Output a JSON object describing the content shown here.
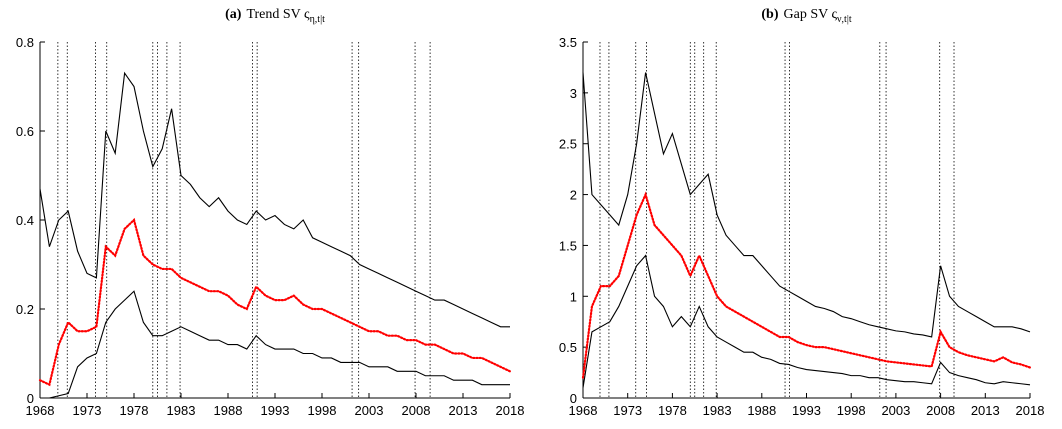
{
  "chart_data": [
    {
      "type": "line",
      "label": "(a)",
      "title": "Trend SV ς",
      "subscript": "η,t|t",
      "x": [
        1968,
        1969,
        1970,
        1971,
        1972,
        1973,
        1974,
        1975,
        1976,
        1977,
        1978,
        1979,
        1980,
        1981,
        1982,
        1983,
        1984,
        1985,
        1986,
        1987,
        1988,
        1989,
        1990,
        1991,
        1992,
        1993,
        1994,
        1995,
        1996,
        1997,
        1998,
        1999,
        2000,
        2001,
        2002,
        2003,
        2004,
        2005,
        2006,
        2007,
        2008,
        2009,
        2010,
        2011,
        2012,
        2013,
        2014,
        2015,
        2016,
        2017,
        2018
      ],
      "series": [
        {
          "color": "#000000",
          "style": "solid",
          "values": [
            0.47,
            0.34,
            0.4,
            0.42,
            0.33,
            0.28,
            0.27,
            0.6,
            0.55,
            0.73,
            0.7,
            0.6,
            0.52,
            0.56,
            0.65,
            0.5,
            0.48,
            0.45,
            0.43,
            0.45,
            0.42,
            0.4,
            0.39,
            0.42,
            0.4,
            0.41,
            0.39,
            0.38,
            0.4,
            0.36,
            0.35,
            0.34,
            0.33,
            0.32,
            0.3,
            0.29,
            0.28,
            0.27,
            0.26,
            0.25,
            0.24,
            0.23,
            0.22,
            0.22,
            0.21,
            0.2,
            0.19,
            0.18,
            0.17,
            0.16,
            0.16
          ]
        },
        {
          "color": "#ff0000",
          "style": "dotted",
          "values": [
            0.04,
            0.03,
            0.12,
            0.17,
            0.15,
            0.15,
            0.16,
            0.34,
            0.32,
            0.38,
            0.4,
            0.32,
            0.3,
            0.29,
            0.29,
            0.27,
            0.26,
            0.25,
            0.24,
            0.24,
            0.23,
            0.21,
            0.2,
            0.25,
            0.23,
            0.22,
            0.22,
            0.23,
            0.21,
            0.2,
            0.2,
            0.19,
            0.18,
            0.17,
            0.16,
            0.15,
            0.15,
            0.14,
            0.14,
            0.13,
            0.13,
            0.12,
            0.12,
            0.11,
            0.1,
            0.1,
            0.09,
            0.09,
            0.08,
            0.07,
            0.06
          ]
        },
        {
          "color": "#000000",
          "style": "solid",
          "values": [
            0,
            0,
            0.005,
            0.01,
            0.07,
            0.09,
            0.1,
            0.17,
            0.2,
            0.22,
            0.24,
            0.17,
            0.14,
            0.14,
            0.15,
            0.16,
            0.15,
            0.14,
            0.13,
            0.13,
            0.12,
            0.12,
            0.11,
            0.14,
            0.12,
            0.11,
            0.11,
            0.11,
            0.1,
            0.1,
            0.09,
            0.09,
            0.08,
            0.08,
            0.08,
            0.07,
            0.07,
            0.07,
            0.06,
            0.06,
            0.06,
            0.05,
            0.05,
            0.05,
            0.04,
            0.04,
            0.04,
            0.03,
            0.03,
            0.03,
            0.03
          ]
        }
      ],
      "vlines": [
        1969.9,
        1970.9,
        1973.9,
        1975.1,
        1980.0,
        1980.5,
        1981.5,
        1982.9,
        1990.6,
        1991.1,
        2001.2,
        2001.9,
        2007.9,
        2009.5
      ],
      "xlim": [
        1968,
        2018
      ],
      "xticks": [
        1968,
        1973,
        1978,
        1983,
        1988,
        1993,
        1998,
        2003,
        2008,
        2013,
        2018
      ],
      "ylim": [
        0,
        0.8
      ],
      "yticks": [
        0,
        0.2,
        0.4,
        0.6,
        0.8
      ]
    },
    {
      "type": "line",
      "label": "(b)",
      "title": "Gap SV ς",
      "subscript": "ν,t|t",
      "x": [
        1968,
        1969,
        1970,
        1971,
        1972,
        1973,
        1974,
        1975,
        1976,
        1977,
        1978,
        1979,
        1980,
        1981,
        1982,
        1983,
        1984,
        1985,
        1986,
        1987,
        1988,
        1989,
        1990,
        1991,
        1992,
        1993,
        1994,
        1995,
        1996,
        1997,
        1998,
        1999,
        2000,
        2001,
        2002,
        2003,
        2004,
        2005,
        2006,
        2007,
        2008,
        2009,
        2010,
        2011,
        2012,
        2013,
        2014,
        2015,
        2016,
        2017,
        2018
      ],
      "series": [
        {
          "color": "#000000",
          "style": "solid",
          "values": [
            3.2,
            2.0,
            1.9,
            1.8,
            1.7,
            2.0,
            2.5,
            3.2,
            2.8,
            2.4,
            2.6,
            2.3,
            2.0,
            2.1,
            2.2,
            1.8,
            1.6,
            1.5,
            1.4,
            1.4,
            1.3,
            1.2,
            1.1,
            1.05,
            1.0,
            0.95,
            0.9,
            0.88,
            0.85,
            0.8,
            0.78,
            0.75,
            0.72,
            0.7,
            0.68,
            0.66,
            0.65,
            0.63,
            0.62,
            0.6,
            1.3,
            1.0,
            0.9,
            0.85,
            0.8,
            0.75,
            0.7,
            0.7,
            0.7,
            0.68,
            0.65
          ]
        },
        {
          "color": "#ff0000",
          "style": "dotted",
          "values": [
            0.2,
            0.9,
            1.1,
            1.1,
            1.2,
            1.5,
            1.8,
            2.0,
            1.7,
            1.6,
            1.5,
            1.4,
            1.2,
            1.4,
            1.2,
            1.0,
            0.9,
            0.85,
            0.8,
            0.75,
            0.7,
            0.65,
            0.6,
            0.6,
            0.55,
            0.52,
            0.5,
            0.5,
            0.48,
            0.46,
            0.44,
            0.42,
            0.4,
            0.38,
            0.36,
            0.35,
            0.34,
            0.33,
            0.32,
            0.31,
            0.65,
            0.5,
            0.45,
            0.42,
            0.4,
            0.38,
            0.36,
            0.4,
            0.35,
            0.33,
            0.3
          ]
        },
        {
          "color": "#000000",
          "style": "solid",
          "values": [
            0.1,
            0.65,
            0.7,
            0.75,
            0.9,
            1.1,
            1.3,
            1.4,
            1.0,
            0.9,
            0.7,
            0.8,
            0.7,
            0.9,
            0.7,
            0.6,
            0.55,
            0.5,
            0.45,
            0.45,
            0.4,
            0.38,
            0.34,
            0.33,
            0.3,
            0.28,
            0.27,
            0.26,
            0.25,
            0.24,
            0.22,
            0.22,
            0.2,
            0.2,
            0.18,
            0.17,
            0.16,
            0.16,
            0.15,
            0.14,
            0.35,
            0.25,
            0.22,
            0.2,
            0.18,
            0.15,
            0.14,
            0.16,
            0.15,
            0.14,
            0.13
          ]
        }
      ],
      "vlines": [
        1969.9,
        1970.9,
        1973.9,
        1975.1,
        1980.0,
        1980.5,
        1981.5,
        1982.9,
        1990.6,
        1991.1,
        2001.2,
        2001.9,
        2007.9,
        2009.5
      ],
      "xlim": [
        1968,
        2018
      ],
      "xticks": [
        1968,
        1973,
        1978,
        1983,
        1988,
        1993,
        1998,
        2003,
        2008,
        2013,
        2018
      ],
      "ylim": [
        0,
        3.5
      ],
      "yticks": [
        0,
        0.5,
        1,
        1.5,
        2,
        2.5,
        3,
        3.5
      ]
    }
  ]
}
